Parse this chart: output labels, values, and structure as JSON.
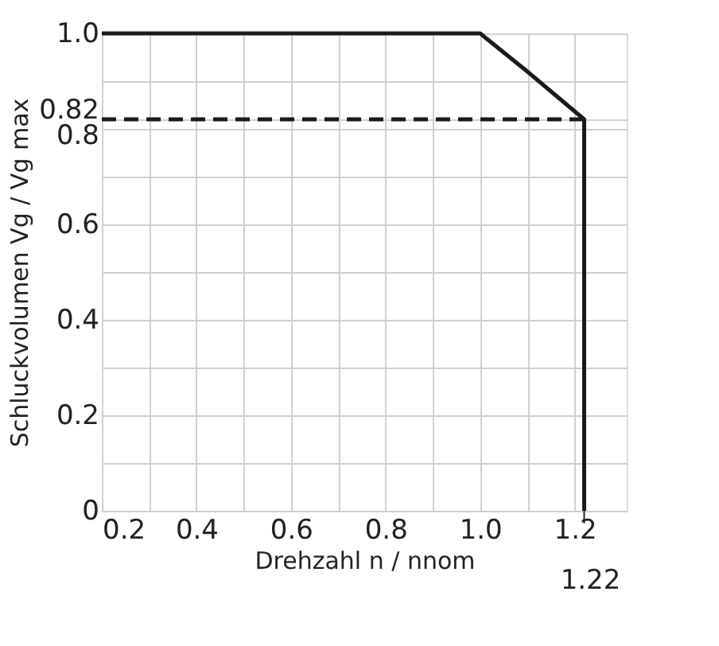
{
  "chart_data": {
    "type": "line",
    "xlabel": "Drehzahl n / nnom",
    "ylabel": "Schluckvolumen Vg / Vg max",
    "xlim": [
      0.2,
      1.31
    ],
    "ylim": [
      0,
      1.0
    ],
    "xticks": [
      0.2,
      {
        "value": 0.3,
        "label": null
      },
      0.4,
      {
        "value": 0.5,
        "label": null
      },
      0.6,
      {
        "value": 0.7,
        "label": null
      },
      0.8,
      {
        "value": 0.9,
        "label": null
      },
      {
        "value": 1.0,
        "label": "1.0"
      },
      {
        "value": 1.1,
        "label": null
      },
      1.2
    ],
    "annotations": [
      {
        "text": "1.22",
        "x": 1.22,
        "y": 0
      }
    ],
    "yticks": [
      0,
      {
        "value": 0.1,
        "label": null
      },
      0.2,
      {
        "value": 0.3,
        "label": null
      },
      0.4,
      {
        "value": 0.5,
        "label": null
      },
      0.6,
      {
        "value": 0.7,
        "label": null
      },
      0.8,
      0.82,
      {
        "value": 0.9,
        "label": null
      },
      {
        "value": 1.0,
        "label": "1.0"
      }
    ],
    "grid": true,
    "legend": false,
    "marker": "none",
    "series": [
      {
        "color": "#1a1a1a",
        "line_style": "solid",
        "x": [
          0.2,
          1.0,
          1.1,
          1.22,
          1.22
        ],
        "values": [
          1.0,
          1.0,
          0.92,
          0.82,
          0
        ]
      },
      {
        "color": "#1a1a1a",
        "line_style": "dashed",
        "x": [
          0.2,
          1.22
        ],
        "values": [
          0.82,
          0.82
        ]
      }
    ]
  }
}
